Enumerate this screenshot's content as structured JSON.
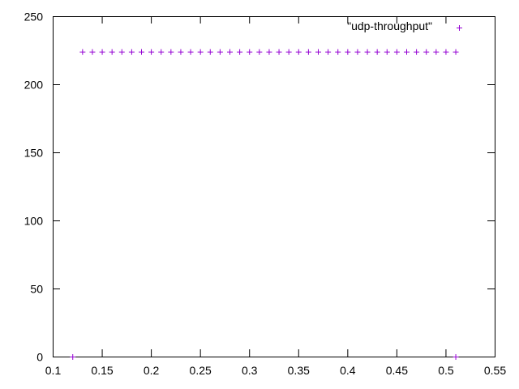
{
  "chart_data": {
    "type": "scatter",
    "title": "",
    "xlabel": "",
    "ylabel": "",
    "xlim": [
      0.1,
      0.55
    ],
    "ylim": [
      0,
      250
    ],
    "x_ticks": [
      "0.1",
      "0.15",
      "0.2",
      "0.25",
      "0.3",
      "0.35",
      "0.4",
      "0.45",
      "0.5",
      "0.55"
    ],
    "y_ticks": [
      "0",
      "50",
      "100",
      "150",
      "200",
      "250"
    ],
    "grid": false,
    "legend_position": "top-right",
    "series": [
      {
        "name": "\"udp-throughput\"",
        "color": "#9400d3",
        "marker": "plus",
        "x": [
          0.12,
          0.13,
          0.14,
          0.15,
          0.16,
          0.17,
          0.18,
          0.19,
          0.2,
          0.21,
          0.22,
          0.23,
          0.24,
          0.25,
          0.26,
          0.27,
          0.28,
          0.29,
          0.3,
          0.31,
          0.32,
          0.33,
          0.34,
          0.35,
          0.36,
          0.37,
          0.38,
          0.39,
          0.4,
          0.41,
          0.42,
          0.43,
          0.44,
          0.45,
          0.46,
          0.47,
          0.48,
          0.49,
          0.5,
          0.51,
          0.51
        ],
        "y": [
          0,
          224,
          224,
          224,
          224,
          224,
          224,
          224,
          224,
          224,
          224,
          224,
          224,
          224,
          224,
          224,
          224,
          224,
          224,
          224,
          224,
          224,
          224,
          224,
          224,
          224,
          224,
          224,
          224,
          224,
          224,
          224,
          224,
          224,
          224,
          224,
          224,
          224,
          224,
          224,
          0
        ]
      }
    ]
  }
}
